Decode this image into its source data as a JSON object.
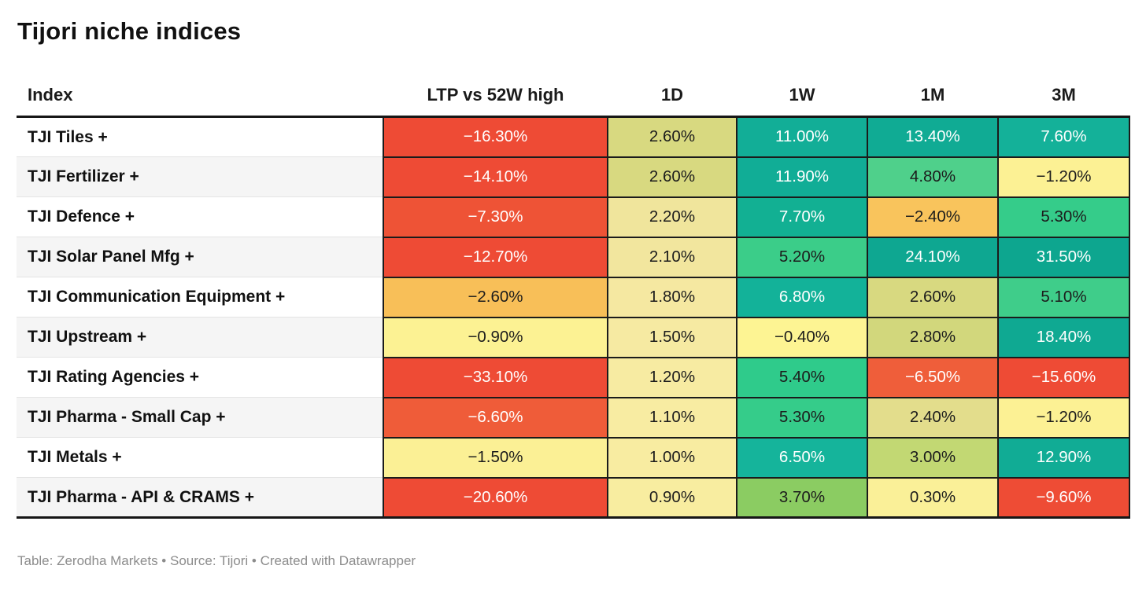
{
  "title": "Tijori niche indices",
  "footer": "Table: Zerodha Markets • Source: Tijori • Created with Datawrapper",
  "chart_data": {
    "type": "table",
    "title": "Tijori niche indices",
    "columns": [
      "Index",
      "LTP vs 52W high",
      "1D",
      "1W",
      "1M",
      "3M"
    ],
    "legend_note": "heatmap cell shading: red = negative, yellow = near zero, green/teal = positive",
    "palette": {
      "strong_negative_red": "#ee4b35",
      "mild_negative_orange": "#f9c45c",
      "near_zero_yellow": "#fcf295",
      "low_positive_khaki": "#d8d980",
      "mid_positive_green": "#4fd08b",
      "strong_positive_teal": "#12ae97"
    },
    "rows": [
      {
        "index": "TJI Tiles +",
        "cells": [
          {
            "text": "−16.30%",
            "bg": "#ee4b35",
            "fg": "#ffffff"
          },
          {
            "text": "2.60%",
            "bg": "#d8d980",
            "fg": "#1c1c1c"
          },
          {
            "text": "11.00%",
            "bg": "#12ae97",
            "fg": "#ffffff"
          },
          {
            "text": "13.40%",
            "bg": "#10ab94",
            "fg": "#ffffff"
          },
          {
            "text": "7.60%",
            "bg": "#14b199",
            "fg": "#ffffff"
          }
        ]
      },
      {
        "index": "TJI Fertilizer +",
        "cells": [
          {
            "text": "−14.10%",
            "bg": "#ee4b35",
            "fg": "#ffffff"
          },
          {
            "text": "2.60%",
            "bg": "#d8d980",
            "fg": "#1c1c1c"
          },
          {
            "text": "11.90%",
            "bg": "#11ad96",
            "fg": "#ffffff"
          },
          {
            "text": "4.80%",
            "bg": "#4fd08b",
            "fg": "#1c1c1c"
          },
          {
            "text": "−1.20%",
            "bg": "#fcf194",
            "fg": "#1c1c1c"
          }
        ]
      },
      {
        "index": "TJI Defence +",
        "cells": [
          {
            "text": "−7.30%",
            "bg": "#ee5336",
            "fg": "#ffffff"
          },
          {
            "text": "2.20%",
            "bg": "#f0e59c",
            "fg": "#1c1c1c"
          },
          {
            "text": "7.70%",
            "bg": "#12b093",
            "fg": "#ffffff"
          },
          {
            "text": "−2.40%",
            "bg": "#f9c45c",
            "fg": "#1c1c1c"
          },
          {
            "text": "5.30%",
            "bg": "#35cc8a",
            "fg": "#1c1c1c"
          }
        ]
      },
      {
        "index": "TJI Solar Panel Mfg +",
        "cells": [
          {
            "text": "−12.70%",
            "bg": "#ee4b35",
            "fg": "#ffffff"
          },
          {
            "text": "2.10%",
            "bg": "#f2e69e",
            "fg": "#1c1c1c"
          },
          {
            "text": "5.20%",
            "bg": "#3bcd89",
            "fg": "#1c1c1c"
          },
          {
            "text": "24.10%",
            "bg": "#0ea791",
            "fg": "#ffffff"
          },
          {
            "text": "31.50%",
            "bg": "#0da68f",
            "fg": "#ffffff"
          }
        ]
      },
      {
        "index": "TJI Communication Equipment +",
        "cells": [
          {
            "text": "−2.60%",
            "bg": "#f8bf58",
            "fg": "#1c1c1c"
          },
          {
            "text": "1.80%",
            "bg": "#f5e8a1",
            "fg": "#1c1c1c"
          },
          {
            "text": "6.80%",
            "bg": "#13b299",
            "fg": "#ffffff"
          },
          {
            "text": "2.60%",
            "bg": "#d8d980",
            "fg": "#1c1c1c"
          },
          {
            "text": "5.10%",
            "bg": "#3fcd8a",
            "fg": "#1c1c1c"
          }
        ]
      },
      {
        "index": "TJI Upstream +",
        "cells": [
          {
            "text": "−0.90%",
            "bg": "#fcf293",
            "fg": "#1c1c1c"
          },
          {
            "text": "1.50%",
            "bg": "#f6eaa2",
            "fg": "#1c1c1c"
          },
          {
            "text": "−0.40%",
            "bg": "#fdf493",
            "fg": "#1c1c1c"
          },
          {
            "text": "2.80%",
            "bg": "#d2d77c",
            "fg": "#1c1c1c"
          },
          {
            "text": "18.40%",
            "bg": "#0fa992",
            "fg": "#ffffff"
          }
        ]
      },
      {
        "index": "TJI Rating Agencies +",
        "cells": [
          {
            "text": "−33.10%",
            "bg": "#ee4b35",
            "fg": "#ffffff"
          },
          {
            "text": "1.20%",
            "bg": "#f7eba2",
            "fg": "#1c1c1c"
          },
          {
            "text": "5.40%",
            "bg": "#2fcb8b",
            "fg": "#1c1c1c"
          },
          {
            "text": "−6.50%",
            "bg": "#ef5e3a",
            "fg": "#ffffff"
          },
          {
            "text": "−15.60%",
            "bg": "#ee4b35",
            "fg": "#ffffff"
          }
        ]
      },
      {
        "index": "TJI Pharma - Small Cap +",
        "cells": [
          {
            "text": "−6.60%",
            "bg": "#ef5c39",
            "fg": "#ffffff"
          },
          {
            "text": "1.10%",
            "bg": "#f8eca2",
            "fg": "#1c1c1c"
          },
          {
            "text": "5.30%",
            "bg": "#35cc8a",
            "fg": "#1c1c1c"
          },
          {
            "text": "2.40%",
            "bg": "#e3dd8c",
            "fg": "#1c1c1c"
          },
          {
            "text": "−1.20%",
            "bg": "#fcf194",
            "fg": "#1c1c1c"
          }
        ]
      },
      {
        "index": "TJI Metals +",
        "cells": [
          {
            "text": "−1.50%",
            "bg": "#fbf095",
            "fg": "#1c1c1c"
          },
          {
            "text": "1.00%",
            "bg": "#f8eca1",
            "fg": "#1c1c1c"
          },
          {
            "text": "6.50%",
            "bg": "#15b49b",
            "fg": "#ffffff"
          },
          {
            "text": "3.00%",
            "bg": "#c2d873",
            "fg": "#1c1c1c"
          },
          {
            "text": "12.90%",
            "bg": "#11ac95",
            "fg": "#ffffff"
          }
        ]
      },
      {
        "index": "TJI Pharma - API & CRAMS +",
        "cells": [
          {
            "text": "−20.60%",
            "bg": "#ee4b35",
            "fg": "#ffffff"
          },
          {
            "text": "0.90%",
            "bg": "#f8eda0",
            "fg": "#1c1c1c"
          },
          {
            "text": "3.70%",
            "bg": "#8bcc62",
            "fg": "#1c1c1c"
          },
          {
            "text": "0.30%",
            "bg": "#faf098",
            "fg": "#1c1c1c"
          },
          {
            "text": "−9.60%",
            "bg": "#ee4c35",
            "fg": "#ffffff"
          }
        ]
      }
    ]
  }
}
